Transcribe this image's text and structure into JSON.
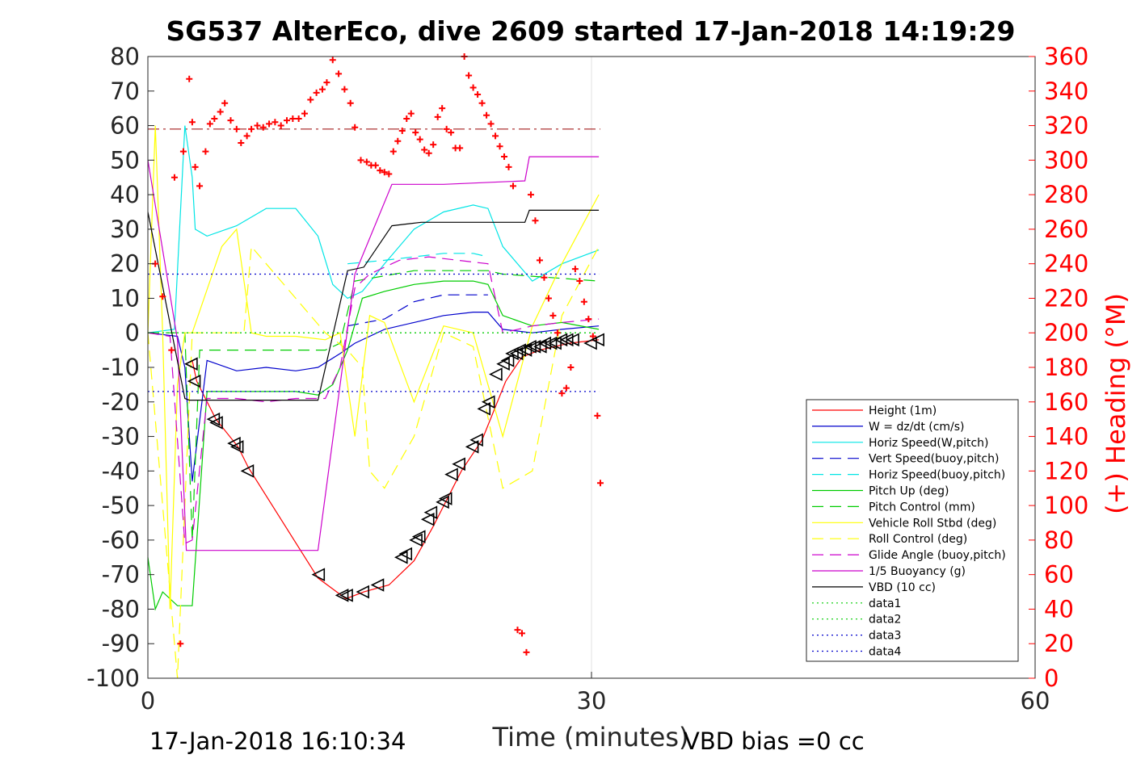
{
  "chart_data": {
    "type": "line",
    "title": "SG537 AlterEco, dive 2609 started 17-Jan-2018 14:19:29",
    "xlabel": "Time (minutes)",
    "ylabel_right": "(+) Heading (°M)",
    "footer_left": "17-Jan-2018 16:10:34",
    "footer_right": "VBD bias =0 cc",
    "xlim": [
      0,
      60
    ],
    "ylim": [
      -100,
      80
    ],
    "ylim_right": [
      0,
      360
    ],
    "x_ticks": [
      "0",
      "30",
      "60"
    ],
    "y_ticks": [
      "80",
      "70",
      "60",
      "50",
      "40",
      "30",
      "20",
      "10",
      "0",
      "-10",
      "-20",
      "-30",
      "-40",
      "-50",
      "-60",
      "-70",
      "-80",
      "-90",
      "-100"
    ],
    "y_ticks_right": [
      "360",
      "340",
      "320",
      "300",
      "280",
      "260",
      "240",
      "220",
      "200",
      "180",
      "160",
      "140",
      "120",
      "100",
      "80",
      "60",
      "40",
      "20",
      "0"
    ],
    "grid": "x only",
    "legend_position": "bottom-right",
    "series": [
      {
        "name": "Height (1m)",
        "color": "#ff0000",
        "style": "solid",
        "x": [
          3.0,
          3.3,
          4.6,
          6.1,
          6.8,
          11.5,
          13.4,
          14.6,
          16.3,
          18.0,
          19.3,
          21.2,
          22.6,
          24.2,
          25.3,
          26.5,
          28.5,
          30.5
        ],
        "y": [
          -8,
          -14,
          -25,
          -33,
          -39,
          -71,
          -77,
          -75,
          -73,
          -66,
          -56,
          -40,
          -31,
          -14,
          -7,
          -5,
          -3,
          -2
        ]
      },
      {
        "name": "W = dz/dt (cm/s)",
        "color": "#0000cc",
        "style": "solid",
        "x": [
          0,
          2.0,
          2.5,
          3.0,
          4.0,
          6,
          8,
          10,
          11.5,
          13,
          14,
          16,
          18,
          20,
          22,
          23,
          24,
          26,
          28,
          30.5
        ],
        "y": [
          0,
          -1,
          -10,
          -43,
          -8,
          -11,
          -10,
          -11,
          -10,
          -6,
          -3,
          1,
          3,
          5,
          6,
          6,
          1,
          0,
          1,
          2
        ]
      },
      {
        "name": "Horiz Speed(W,pitch)",
        "color": "#00e5e5",
        "style": "solid",
        "x": [
          0,
          1.8,
          2.5,
          3.0,
          3.2,
          4.0,
          6,
          8,
          10,
          11.5,
          12.5,
          13.5,
          14.5,
          16,
          18,
          20,
          22,
          23,
          24,
          26,
          28,
          30.5
        ],
        "y": [
          0,
          1,
          60,
          45,
          30,
          28,
          31,
          36,
          36,
          28,
          14,
          10,
          12,
          20,
          30,
          35,
          37,
          36,
          25,
          15,
          20,
          24
        ]
      },
      {
        "name": "Vert Speed(buoy,pitch)",
        "color": "#0000cc",
        "style": "dashed",
        "x": [
          13.5,
          16,
          18,
          20,
          22,
          23
        ],
        "y": [
          2,
          4,
          9,
          11,
          11,
          11
        ]
      },
      {
        "name": "Horiz Speed(buoy,pitch)",
        "color": "#00e5e5",
        "style": "dashed",
        "x": [
          13.5,
          16,
          18,
          20,
          22,
          23
        ],
        "y": [
          20,
          21,
          22,
          23,
          23,
          22
        ]
      },
      {
        "name": "Pitch Up (deg)",
        "color": "#00cc00",
        "style": "solid",
        "x": [
          0,
          0.5,
          1,
          2,
          3,
          4,
          6,
          8,
          10,
          11.5,
          12.5,
          13.5,
          14.5,
          16,
          18,
          20,
          22,
          23,
          24,
          26,
          28,
          30.5
        ],
        "y": [
          -65,
          -80,
          -75,
          -79,
          -79,
          -17,
          -17,
          -17,
          -17,
          -18,
          -15,
          -5,
          10,
          12,
          14,
          15,
          15,
          14,
          5,
          2,
          3,
          1
        ]
      },
      {
        "name": "Pitch Control (mm)",
        "color": "#00cc00",
        "style": "dashed",
        "x": [
          0,
          2.5,
          3,
          3.5,
          12,
          13,
          14,
          18,
          23,
          24,
          30.5
        ],
        "y": [
          0,
          0,
          -60,
          -5,
          -5,
          -3,
          15,
          18,
          18,
          17,
          15
        ]
      },
      {
        "name": "Vehicle Roll Stbd (deg)",
        "color": "#ffff00",
        "style": "solid",
        "x": [
          0,
          0.5,
          1,
          1.5,
          2,
          2.5,
          3,
          5,
          6,
          7,
          8,
          10,
          12,
          13,
          14,
          15,
          16,
          18,
          20,
          22,
          24,
          26,
          28,
          30.5
        ],
        "y": [
          0,
          60,
          0,
          -80,
          -15,
          0,
          0,
          25,
          30,
          0,
          -1,
          -1,
          -2,
          0,
          -30,
          5,
          3,
          -20,
          2,
          0,
          -30,
          2,
          20,
          40
        ]
      },
      {
        "name": "Roll Control (deg)",
        "color": "#ffff00",
        "style": "dashed",
        "x": [
          0,
          2,
          3,
          6.5,
          7,
          12,
          13.5,
          14.5,
          15,
          16,
          18,
          20,
          22,
          24,
          26,
          28,
          30.5
        ],
        "y": [
          0,
          -100,
          0,
          0,
          25,
          0,
          -5,
          -10,
          -40,
          -45,
          -30,
          0,
          -4,
          -45,
          -40,
          5,
          25
        ]
      },
      {
        "name": "Glide Angle (buoy,pitch)",
        "color": "#cc00cc",
        "style": "dashed",
        "x": [
          0,
          1.5,
          2.5,
          3.0,
          4,
          6,
          8,
          10,
          12,
          13,
          14,
          15,
          17,
          19,
          21,
          23,
          24,
          26,
          28,
          30.5
        ],
        "y": [
          0,
          -1,
          -61,
          -60,
          -19,
          -19,
          -20,
          -19,
          -19,
          -10,
          13,
          17,
          21,
          22,
          21,
          20,
          0,
          2,
          3,
          4
        ]
      },
      {
        "name": "1/5 Buoyancy (g)",
        "color": "#cc00cc",
        "style": "solid",
        "x": [
          0,
          2.0,
          2.6,
          3.0,
          11.5,
          14,
          16.5,
          20,
          25.5,
          25.8,
          30.5
        ],
        "y": [
          50,
          -2,
          -63,
          -63,
          -63,
          17,
          43,
          43,
          44,
          51,
          51
        ]
      },
      {
        "name": "VBD (10 cc)",
        "color": "#000000",
        "style": "solid",
        "x": [
          0,
          2.5,
          2.8,
          11.5,
          13.5,
          14.6,
          16.5,
          18.5,
          25.5,
          25.8,
          30.5
        ],
        "y": [
          35,
          -19,
          -19.5,
          -19.5,
          18,
          19,
          31,
          32,
          32,
          35.5,
          35.5
        ]
      },
      {
        "name": "data1",
        "color": "#00cc00",
        "style": "dotted",
        "x": [
          0,
          30.5
        ],
        "y": [
          0,
          0
        ]
      },
      {
        "name": "data2",
        "color": "#00cc00",
        "style": "dotted",
        "x": [
          0,
          30.5
        ],
        "y": [
          0,
          0
        ]
      },
      {
        "name": "data3",
        "color": "#0000cc",
        "style": "dotted",
        "x": [
          0,
          30.5
        ],
        "y": [
          -17,
          -17
        ]
      },
      {
        "name": "data4",
        "color": "#0000cc",
        "style": "dotted",
        "x": [
          0,
          30.5
        ],
        "y": [
          17,
          17
        ]
      }
    ],
    "reference_line": {
      "axis": "right",
      "value": 318,
      "color": "#990000",
      "style": "dashdot"
    },
    "heading_points": {
      "color": "#ff0000",
      "axis": "right",
      "marker": "+",
      "x": [
        0.5,
        1.0,
        1.6,
        1.8,
        2.2,
        2.4,
        2.8,
        3.0,
        3.2,
        3.5,
        3.9,
        4.2,
        4.5,
        4.9,
        5.2,
        5.6,
        6.0,
        6.3,
        6.7,
        7.0,
        7.4,
        7.8,
        8.2,
        8.6,
        9.0,
        9.4,
        9.8,
        10.2,
        10.6,
        11.0,
        11.4,
        11.8,
        12.1,
        12.5,
        12.9,
        13.3,
        13.7,
        14.0,
        14.4,
        14.8,
        15.1,
        15.4,
        15.7,
        16.0,
        16.3,
        16.6,
        16.9,
        17.2,
        17.5,
        17.8,
        18.1,
        18.4,
        18.7,
        19.0,
        19.3,
        19.6,
        19.9,
        20.2,
        20.5,
        20.8,
        21.1,
        21.4,
        21.7,
        22.0,
        22.3,
        22.6,
        22.9,
        23.2,
        23.5,
        23.8,
        24.1,
        24.4,
        24.7,
        25.0,
        25.3,
        25.6,
        25.9,
        26.2,
        26.5,
        26.8,
        27.1,
        27.4,
        27.7,
        28.0,
        28.3,
        28.6,
        28.9,
        29.2,
        29.5,
        29.8,
        30.1,
        30.4,
        30.6
      ],
      "y": [
        240,
        221,
        190,
        290,
        20,
        305,
        347,
        322,
        296,
        285,
        305,
        321,
        324,
        328,
        333,
        323,
        318,
        310,
        314,
        318,
        320,
        319,
        321,
        322,
        320,
        323,
        324,
        324,
        327,
        335,
        339,
        341,
        345,
        358,
        350,
        341,
        333,
        319,
        300,
        299,
        297,
        297,
        294,
        293,
        292,
        305,
        311,
        317,
        324,
        327,
        316,
        312,
        306,
        304,
        309,
        325,
        330,
        318,
        316,
        307,
        307,
        360,
        349,
        342,
        338,
        333,
        326,
        321,
        314,
        308,
        302,
        296,
        285,
        28,
        26,
        15,
        280,
        265,
        242,
        232,
        220,
        210,
        200,
        165,
        168,
        180,
        237,
        230,
        218,
        208,
        198,
        152,
        113
      ]
    },
    "triangle_markers": {
      "color": "#000000",
      "axis": "left",
      "x": [
        3.0,
        3.2,
        4.5,
        4.7,
        5.9,
        6.1,
        6.8,
        11.6,
        13.2,
        13.5,
        14.6,
        15.6,
        17.2,
        17.5,
        18.2,
        18.4,
        19.0,
        19.2,
        20.0,
        20.2,
        20.6,
        21.1,
        22.0,
        22.3,
        22.8,
        23.1,
        23.6,
        24.1,
        24.4,
        24.7,
        25.0,
        25.2,
        25.6,
        25.9,
        26.2,
        26.6,
        26.9,
        27.3,
        27.6,
        28.0,
        28.4,
        28.8,
        30.0,
        30.5
      ],
      "y": [
        -9,
        -14,
        -25,
        -26,
        -32,
        -33,
        -40,
        -70,
        -76,
        -76,
        -75,
        -73,
        -65,
        -64,
        -60,
        -59,
        -54,
        -52,
        -49,
        -48,
        -41,
        -38,
        -33,
        -31,
        -22,
        -20,
        -12,
        -9,
        -8,
        -6,
        -6,
        -5,
        -5,
        -4,
        -4,
        -4,
        -3,
        -3,
        -3,
        -2,
        -2,
        -2,
        -3,
        -2
      ]
    }
  }
}
